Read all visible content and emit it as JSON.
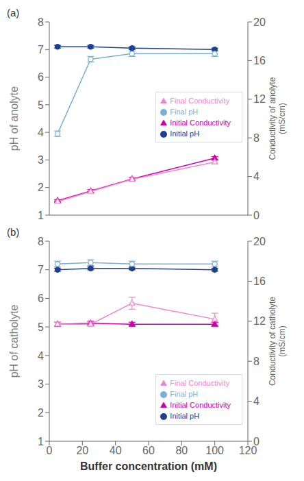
{
  "chart_data": [
    {
      "type": "line",
      "annotations": [
        "(a)"
      ],
      "ylabel": "pH of anolyte",
      "y2label": "Conductivity of anolyte\n(mS/cm)",
      "x": [
        5,
        25,
        50,
        100
      ],
      "xlim": [
        0,
        120
      ],
      "xticks": [
        0,
        20,
        40,
        60,
        80,
        100,
        120
      ],
      "ylim": [
        1,
        8
      ],
      "yticks": [
        1,
        2,
        3,
        4,
        5,
        6,
        7,
        8
      ],
      "y2lim": [
        0,
        20
      ],
      "y2ticks": [
        0,
        4,
        8,
        12,
        16,
        20
      ],
      "grid": false,
      "legend": "center right",
      "tick_labels": "y",
      "series": [
        {
          "name": "Initial pH",
          "color": "#1F3F8F",
          "marker": "circle",
          "values": [
            7.1,
            7.1,
            7.05,
            7.0
          ],
          "errors": [
            0.05,
            0.05,
            0.05,
            0.05
          ]
        },
        {
          "name": "Final pH",
          "color": "#7BAFD4",
          "marker": "open_circle",
          "values": [
            3.95,
            6.65,
            6.85,
            6.85
          ],
          "errors": [
            0.1,
            0.1,
            0.1,
            0.1
          ]
        },
        {
          "name": "Initial Conductivity",
          "color": "#CC00AA",
          "marker": "triangle",
          "axis": "y2",
          "values": [
            1.5,
            2.5,
            3.75,
            5.9
          ],
          "errors": [
            0.1,
            0.15,
            0.15,
            0.15
          ]
        },
        {
          "name": "Final Conductivity",
          "color": "#EE88CC",
          "marker": "open_triangle",
          "axis": "y2",
          "values": [
            1.4,
            2.45,
            3.7,
            5.5
          ],
          "errors": [
            0.1,
            0.15,
            0.15,
            0.2
          ]
        }
      ]
    },
    {
      "type": "line",
      "annotations": [
        "(b)"
      ],
      "xlabel": "Buffer concentration (mM)",
      "ylabel": "pH of catholyte",
      "y2label": "Conductivity of catholyte\n(mS/cm)",
      "x": [
        5,
        25,
        50,
        100
      ],
      "xlim": [
        0,
        120
      ],
      "xticks": [
        0,
        20,
        40,
        60,
        80,
        100,
        120
      ],
      "ylim": [
        1,
        8
      ],
      "yticks": [
        1,
        2,
        3,
        4,
        5,
        6,
        7,
        8
      ],
      "y2lim": [
        0,
        20
      ],
      "y2ticks": [
        0,
        4,
        8,
        12,
        16,
        20
      ],
      "grid": false,
      "legend": "lower right",
      "series": [
        {
          "name": "Initial pH",
          "color": "#1F3F8F",
          "marker": "circle",
          "values": [
            7.0,
            7.05,
            7.05,
            7.0
          ],
          "errors": [
            0.05,
            0.05,
            0.05,
            0.05
          ]
        },
        {
          "name": "Final pH",
          "color": "#7BAFD4",
          "marker": "open_circle",
          "values": [
            7.2,
            7.25,
            7.2,
            7.2
          ],
          "errors": [
            0.1,
            0.1,
            0.1,
            0.1
          ]
        },
        {
          "name": "Initial Conductivity",
          "color": "#CC00AA",
          "marker": "triangle",
          "axis": "y2",
          "values": [
            11.7,
            11.8,
            11.7,
            11.7
          ],
          "errors": [
            0.2,
            0.2,
            0.2,
            0.2
          ]
        },
        {
          "name": "Final Conductivity",
          "color": "#EE88CC",
          "marker": "open_triangle",
          "axis": "y2",
          "values": [
            11.7,
            11.7,
            13.8,
            12.2
          ],
          "errors": [
            0.2,
            0.2,
            0.6,
            0.6
          ]
        }
      ]
    }
  ]
}
